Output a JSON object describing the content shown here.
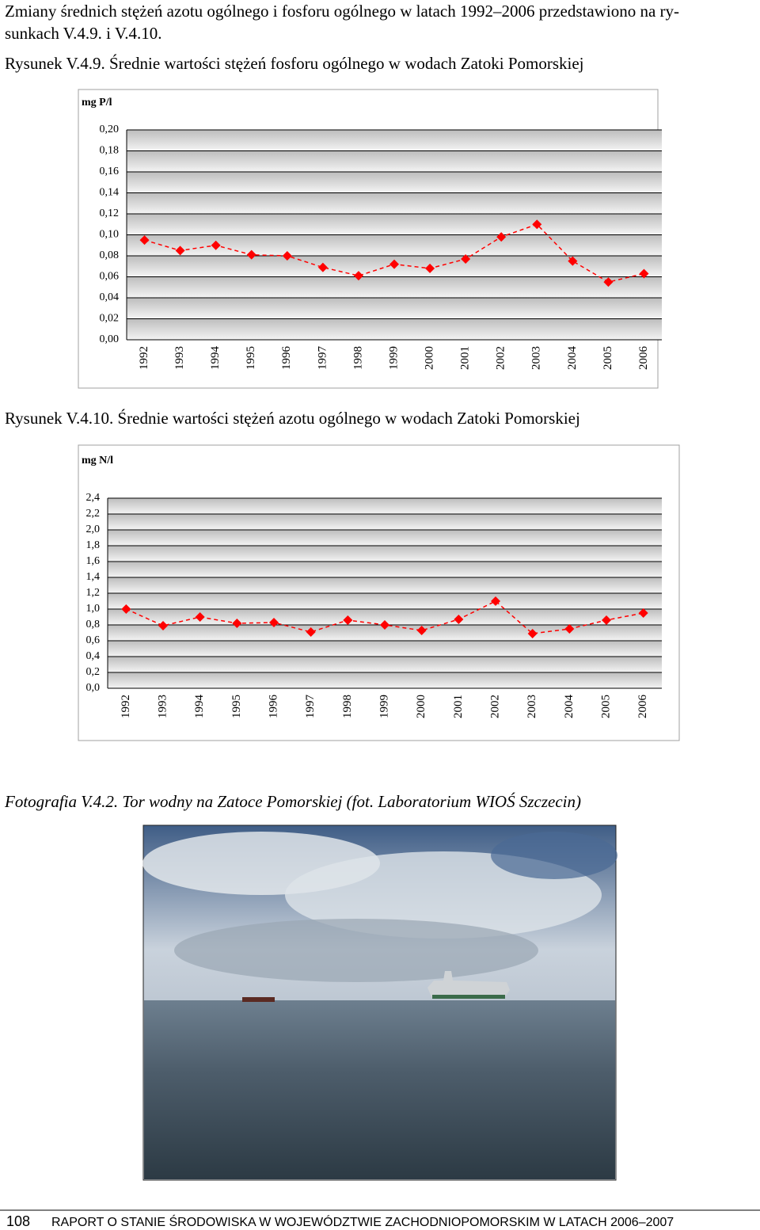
{
  "intro": {
    "lines": [
      "Zmiany średnich stężeń azotu ogólnego i fosforu ogólnego w latach 1992–2006 przedstawiono na ry-",
      "sunkach V.4.9. i V.4.10."
    ]
  },
  "chart_data": [
    {
      "type": "line",
      "title": "Rysunek V.4.9. Średnie wartości stężeń fosforu ogólnego w wodach Zatoki Pomorskiej",
      "ylabel": "mg P/l",
      "categories": [
        "1992",
        "1993",
        "1994",
        "1995",
        "1996",
        "1997",
        "1998",
        "1999",
        "2000",
        "2001",
        "2002",
        "2003",
        "2004",
        "2005",
        "2006"
      ],
      "values": [
        0.095,
        0.085,
        0.09,
        0.081,
        0.08,
        0.069,
        0.061,
        0.072,
        0.068,
        0.077,
        0.098,
        0.11,
        0.075,
        0.055,
        0.063
      ],
      "color": "#ff0000",
      "ylim": [
        0,
        0.2
      ],
      "yticks": [
        {
          "value": 0,
          "label": "0,00"
        },
        {
          "value": 0.02,
          "label": "0,02"
        },
        {
          "value": 0.04,
          "label": "0,04"
        },
        {
          "value": 0.06,
          "label": "0,06"
        },
        {
          "value": 0.08,
          "label": "0,08"
        },
        {
          "value": 0.1,
          "label": "0,10"
        },
        {
          "value": 0.12,
          "label": "0,12"
        },
        {
          "value": 0.14,
          "label": "0,14"
        },
        {
          "value": 0.16,
          "label": "0,16"
        },
        {
          "value": 0.18,
          "label": "0,18"
        },
        {
          "value": 0.2,
          "label": "0,20"
        }
      ],
      "grid": true
    },
    {
      "type": "line",
      "title": "Rysunek V.4.10. Średnie wartości stężeń azotu ogólnego w wodach Zatoki Pomorskiej",
      "ylabel": "mg N/l",
      "categories": [
        "1992",
        "1993",
        "1994",
        "1995",
        "1996",
        "1997",
        "1998",
        "1999",
        "2000",
        "2001",
        "2002",
        "2003",
        "2004",
        "2005",
        "2006"
      ],
      "values": [
        1.0,
        0.79,
        0.9,
        0.82,
        0.83,
        0.71,
        0.86,
        0.8,
        0.73,
        0.87,
        1.1,
        0.69,
        0.75,
        0.86,
        0.95
      ],
      "color": "#ff0000",
      "ylim": [
        0,
        2.4
      ],
      "yticks": [
        {
          "value": 0,
          "label": "0,0"
        },
        {
          "value": 0.2,
          "label": "0,2"
        },
        {
          "value": 0.4,
          "label": "0,4"
        },
        {
          "value": 0.6,
          "label": "0,6"
        },
        {
          "value": 0.8,
          "label": "0,8"
        },
        {
          "value": 1.0,
          "label": "1,0"
        },
        {
          "value": 1.2,
          "label": "1,2"
        },
        {
          "value": 1.4,
          "label": "1,4"
        },
        {
          "value": 1.6,
          "label": "1,6"
        },
        {
          "value": 1.8,
          "label": "1,8"
        },
        {
          "value": 2.0,
          "label": "2,0"
        },
        {
          "value": 2.2,
          "label": "2,2"
        },
        {
          "value": 2.4,
          "label": "2,4"
        }
      ],
      "grid": true
    }
  ],
  "photo": {
    "caption": "Fotografia V.4.2. Tor wodny na Zatoce Pomorskiej (fot. Laboratorium WIOŚ Szczecin)"
  },
  "footer": {
    "page": "108",
    "text": "RAPORT O STANIE ŚRODOWISKA W WOJEWÓDZTWIE ZACHODNIOPOMORSKIM W LATACH 2006–2007"
  }
}
